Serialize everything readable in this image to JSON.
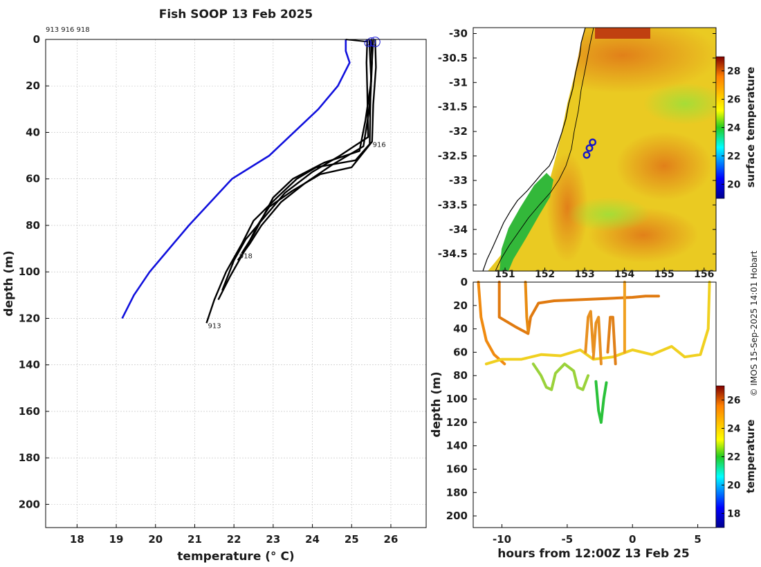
{
  "title": "Fish SOOP 13 Feb 2025",
  "credit": "© IMOS 15-Sep-2025 14:01 Hobart",
  "colors": {
    "climatology": "#1010dd",
    "profile": "#000000",
    "background": "#ffffff"
  },
  "chart_data": [
    {
      "type": "line",
      "panel": "profile",
      "title": "Fish SOOP 13 Feb 2025",
      "xlabel": "temperature (° C)",
      "ylabel": "depth (m)",
      "xlim": [
        17.2,
        26.9
      ],
      "ylim": [
        210,
        0
      ],
      "xticks": [
        18,
        19,
        20,
        21,
        22,
        23,
        24,
        25,
        26
      ],
      "yticks": [
        0,
        20,
        40,
        60,
        80,
        100,
        120,
        140,
        160,
        180,
        200
      ],
      "grid": true,
      "header_label": "913 916 918",
      "series": [
        {
          "x": [
            24.85,
            24.85,
            24.95,
            24.65,
            24.15,
            22.9,
            21.95,
            20.85,
            20.35,
            19.85,
            19.45,
            19.15
          ],
          "y": [
            0,
            5,
            10,
            20,
            30,
            50,
            60,
            80,
            90,
            100,
            110,
            120
          ]
        },
        {
          "x": [
            25.5,
            25.52,
            25.48,
            25.46,
            25.1,
            24.1,
            23.6,
            23.1,
            22.5,
            22.2,
            21.8,
            21.5,
            21.3
          ],
          "y": [
            0,
            10,
            25,
            45,
            52,
            55,
            60,
            68,
            78,
            88,
            100,
            112,
            122
          ]
        },
        {
          "x": [
            25.6,
            25.62,
            25.55,
            25.52,
            25.0,
            24.2,
            23.5,
            22.9,
            22.6,
            22.3,
            21.9,
            21.6
          ],
          "y": [
            0,
            12,
            28,
            44,
            55,
            58,
            65,
            72,
            80,
            90,
            102,
            112
          ]
        },
        {
          "x": [
            25.4,
            25.38,
            25.4,
            25.42,
            24.7,
            24.0,
            23.3,
            22.8,
            22.3,
            22.0,
            21.7
          ],
          "y": [
            0,
            10,
            22,
            42,
            50,
            57,
            66,
            76,
            86,
            95,
            108
          ]
        },
        {
          "x": [
            25.55,
            25.5,
            25.45,
            25.3,
            24.5,
            23.8,
            23.2,
            22.7,
            22.4,
            22.1
          ],
          "y": [
            0,
            15,
            30,
            46,
            54,
            62,
            70,
            80,
            88,
            95
          ]
        },
        {
          "x": [
            25.45,
            25.5,
            25.35,
            25.2,
            24.3,
            23.5,
            23.0,
            22.5,
            22.2
          ],
          "y": [
            0,
            18,
            35,
            48,
            53,
            60,
            68,
            84,
            92
          ]
        }
      ],
      "profile_labels": [
        {
          "text": "916",
          "x": 25.5,
          "y": 45
        },
        {
          "text": "918",
          "x": 22.1,
          "y": 93
        },
        {
          "text": "913",
          "x": 21.3,
          "y": 123
        }
      ],
      "surface_markers": [
        {
          "x": 25.42,
          "y": 1
        },
        {
          "x": 25.5,
          "y": 0.5
        },
        {
          "x": 25.6,
          "y": 0.5
        }
      ]
    },
    {
      "type": "heatmap",
      "panel": "sst-map",
      "xlim": [
        150.2,
        156.3
      ],
      "ylim": [
        -34.85,
        -29.88
      ],
      "xticks": [
        151,
        152,
        153,
        154,
        155,
        156
      ],
      "xtick_labels": [
        "151",
        "152",
        "153",
        "154",
        "155",
        "156"
      ],
      "yticks": [
        -30,
        -30.5,
        -31,
        -31.5,
        -32,
        -32.5,
        -33,
        -33.5,
        -34,
        -34.5
      ],
      "colorbar": {
        "label": "surface temperature",
        "range": [
          19,
          29
        ],
        "ticks": [
          20,
          22,
          24,
          26,
          28
        ]
      },
      "stations": [
        {
          "lon": 153.05,
          "lat": -32.48
        },
        {
          "lon": 153.12,
          "lat": -32.34
        },
        {
          "lon": 153.2,
          "lat": -32.22
        }
      ]
    },
    {
      "type": "scatter",
      "panel": "depth-time",
      "xlabel": "hours from 12:00Z 13 Feb 25",
      "ylabel": "depth (m)",
      "xlim": [
        -12.2,
        6.4
      ],
      "ylim": [
        210,
        0
      ],
      "xticks": [
        -10,
        -5,
        0,
        5
      ],
      "yticks": [
        0,
        20,
        40,
        60,
        80,
        100,
        120,
        140,
        160,
        180,
        200
      ],
      "colorbar": {
        "label": "temperature",
        "range": [
          17,
          27
        ],
        "ticks": [
          18,
          20,
          22,
          24,
          26
        ]
      }
    }
  ]
}
